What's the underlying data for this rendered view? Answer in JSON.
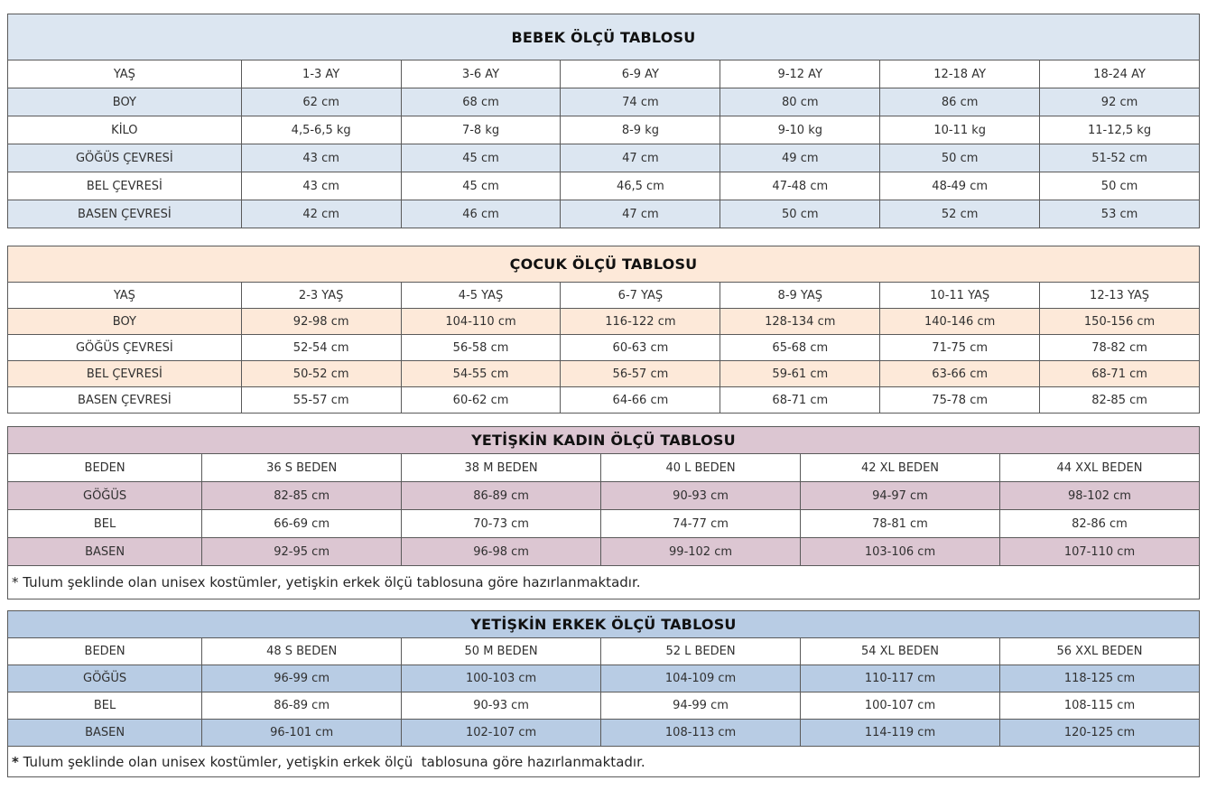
{
  "page": {
    "background": "#ffffff",
    "border_color": "#5a5a5a",
    "text_color": "#303030"
  },
  "tables": [
    {
      "id": "bebek",
      "title": "BEBEK ÖLÇÜ TABLOSU",
      "accent_color": "#dce6f1",
      "rows": [
        [
          "YAŞ",
          "1-3 AY",
          "3-6 AY",
          "6-9 AY",
          "9-12 AY",
          "12-18 AY",
          "18-24 AY"
        ],
        [
          "BOY",
          "62 cm",
          "68 cm",
          "74 cm",
          "80 cm",
          "86 cm",
          "92 cm"
        ],
        [
          "KİLO",
          "4,5-6,5 kg",
          "7-8 kg",
          "8-9 kg",
          "9-10 kg",
          "10-11 kg",
          "11-12,5 kg"
        ],
        [
          "GÖĞÜS ÇEVRESİ",
          "43 cm",
          "45 cm",
          "47 cm",
          "49 cm",
          "50 cm",
          "51-52 cm"
        ],
        [
          "BEL ÇEVRESİ",
          "43 cm",
          "45 cm",
          "46,5 cm",
          "47-48 cm",
          "48-49 cm",
          "50 cm"
        ],
        [
          "BASEN ÇEVRESİ",
          "42 cm",
          "46 cm",
          "47 cm",
          "50 cm",
          "52 cm",
          "53 cm"
        ]
      ],
      "footnote": null
    },
    {
      "id": "cocuk",
      "title": "ÇOCUK ÖLÇÜ TABLOSU",
      "accent_color": "#fde9d9",
      "rows": [
        [
          "YAŞ",
          "2-3 YAŞ",
          "4-5 YAŞ",
          "6-7 YAŞ",
          "8-9 YAŞ",
          "10-11 YAŞ",
          "12-13 YAŞ"
        ],
        [
          "BOY",
          "92-98 cm",
          "104-110 cm",
          "116-122 cm",
          "128-134 cm",
          "140-146 cm",
          "150-156 cm"
        ],
        [
          "GÖĞÜS ÇEVRESİ",
          "52-54 cm",
          "56-58 cm",
          "60-63 cm",
          "65-68 cm",
          "71-75 cm",
          "78-82 cm"
        ],
        [
          "BEL ÇEVRESİ",
          "50-52 cm",
          "54-55 cm",
          "56-57 cm",
          "59-61 cm",
          "63-66 cm",
          "68-71 cm"
        ],
        [
          "BASEN ÇEVRESİ",
          "55-57 cm",
          "60-62 cm",
          "64-66 cm",
          "68-71 cm",
          "75-78 cm",
          "82-85 cm"
        ]
      ],
      "footnote": null
    },
    {
      "id": "yetiskin-kadin",
      "title": "YETİŞKİN KADIN ÖLÇÜ TABLOSU",
      "accent_color": "#dcc6d2",
      "rows": [
        [
          "BEDEN",
          "36 S BEDEN",
          "38 M BEDEN",
          "40 L BEDEN",
          "42 XL BEDEN",
          "44 XXL BEDEN"
        ],
        [
          "GÖĞÜS",
          "82-85 cm",
          "86-89 cm",
          "90-93 cm",
          "94-97 cm",
          "98-102 cm"
        ],
        [
          "BEL",
          "66-69 cm",
          "70-73 cm",
          "74-77 cm",
          "78-81 cm",
          "82-86 cm"
        ],
        [
          "BASEN",
          "92-95 cm",
          "96-98 cm",
          "99-102 cm",
          "103-106 cm",
          "107-110 cm"
        ]
      ],
      "footnote": {
        "marker": "*",
        "text": " Tulum şeklinde olan unisex kostümler, yetişkin erkek ölçü tablosuna göre hazırlanmaktadır.",
        "bold_marker": false
      }
    },
    {
      "id": "yetiskin-erkek",
      "title": "YETİŞKİN ERKEK ÖLÇÜ TABLOSU",
      "accent_color": "#b8cce4",
      "rows": [
        [
          "BEDEN",
          "48 S BEDEN",
          "50 M BEDEN",
          "52 L BEDEN",
          "54 XL BEDEN",
          "56 XXL BEDEN"
        ],
        [
          "GÖĞÜS",
          "96-99 cm",
          "100-103 cm",
          "104-109 cm",
          "110-117 cm",
          "118-125 cm"
        ],
        [
          "BEL",
          "86-89 cm",
          "90-93 cm",
          "94-99 cm",
          "100-107 cm",
          "108-115 cm"
        ],
        [
          "BASEN",
          "96-101 cm",
          "102-107 cm",
          "108-113 cm",
          "114-119 cm",
          "120-125 cm"
        ]
      ],
      "footnote": {
        "marker": "*",
        "text": " Tulum şeklinde olan unisex kostümler, yetişkin erkek ölçü  tablosuna göre hazırlanmaktadır.",
        "bold_marker": true
      }
    }
  ]
}
